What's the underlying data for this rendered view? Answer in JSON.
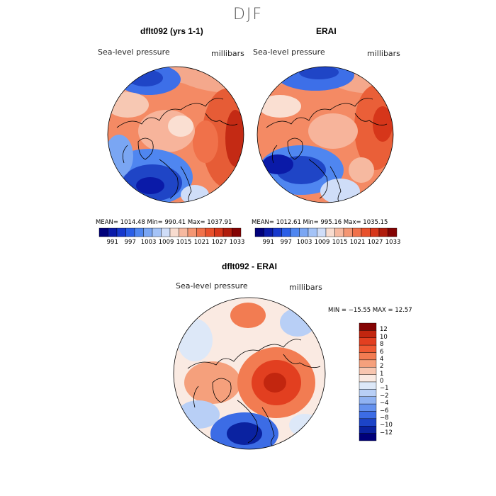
{
  "season_title": "DJF",
  "panels": {
    "model": {
      "title": "dflt092 (yrs 1-1)",
      "variable": "Sea-level pressure",
      "units": "millibars",
      "stats": "MEAN= 1014.48    Min= 990.41    Max= 1037.91"
    },
    "obs": {
      "title": "ERAI",
      "variable": "Sea-level pressure",
      "units": "millibars",
      "stats": "MEAN= 1012.61    Min= 995.16    Max= 1035.15"
    },
    "diff": {
      "title": "dflt092 - ERAI",
      "variable": "Sea-level pressure",
      "units": "millibars",
      "stats": "MIN = −15.55 MAX =   12.57"
    }
  },
  "colorbar_abs": {
    "labels": [
      "991",
      "997",
      "1003",
      "1009",
      "1015",
      "1021",
      "1027",
      "1033"
    ],
    "colors": [
      "#00007a",
      "#0a1aa8",
      "#1638cc",
      "#2a5ee6",
      "#4f86f0",
      "#7aa6f3",
      "#a4c3f7",
      "#cfddf8",
      "#f8dccf",
      "#f6b9a0",
      "#f49673",
      "#f0714a",
      "#e8502b",
      "#d6361a",
      "#b01c0c",
      "#840303"
    ]
  },
  "colorbar_diff": {
    "labels": [
      "12",
      "10",
      "8",
      "6",
      "4",
      "2",
      "1",
      "0",
      "−1",
      "−2",
      "−4",
      "−6",
      "−8",
      "−10",
      "−12"
    ],
    "colors": [
      "#840303",
      "#c2260f",
      "#e23f20",
      "#ef5a33",
      "#f27c52",
      "#f5a07c",
      "#f8c6b0",
      "#faeae2",
      "#dde8f8",
      "#b8cff6",
      "#8fb2f2",
      "#6491ee",
      "#3c6ce5",
      "#1c44c8",
      "#0a22a0",
      "#00007a"
    ]
  }
}
